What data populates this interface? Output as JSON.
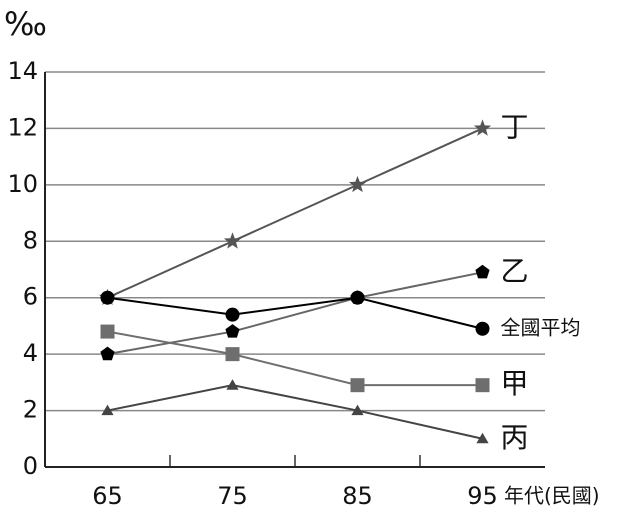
{
  "chart_data": {
    "type": "line",
    "y_label": "‰",
    "x_label": "年代(民國)",
    "categories": [
      "65",
      "75",
      "85",
      "95"
    ],
    "ylim": [
      0,
      14
    ],
    "yticks": [
      0,
      2,
      4,
      6,
      8,
      10,
      12,
      14
    ],
    "grid": true,
    "series": [
      {
        "name": "丁",
        "color": "#555555",
        "marker": "star",
        "values": [
          6,
          8,
          10,
          12
        ]
      },
      {
        "name": "乙",
        "color": "#666666",
        "marker": "pentagon",
        "values": [
          4,
          4.8,
          6,
          6.9
        ]
      },
      {
        "name": "全國平均",
        "color": "#000000",
        "marker": "circle",
        "values": [
          6,
          5.4,
          6,
          4.9
        ]
      },
      {
        "name": "甲",
        "color": "#6e6e6e",
        "marker": "square",
        "values": [
          4.8,
          4,
          2.9,
          2.9
        ]
      },
      {
        "name": "丙",
        "color": "#444444",
        "marker": "triangle",
        "values": [
          2,
          2.9,
          2,
          1
        ]
      }
    ]
  }
}
